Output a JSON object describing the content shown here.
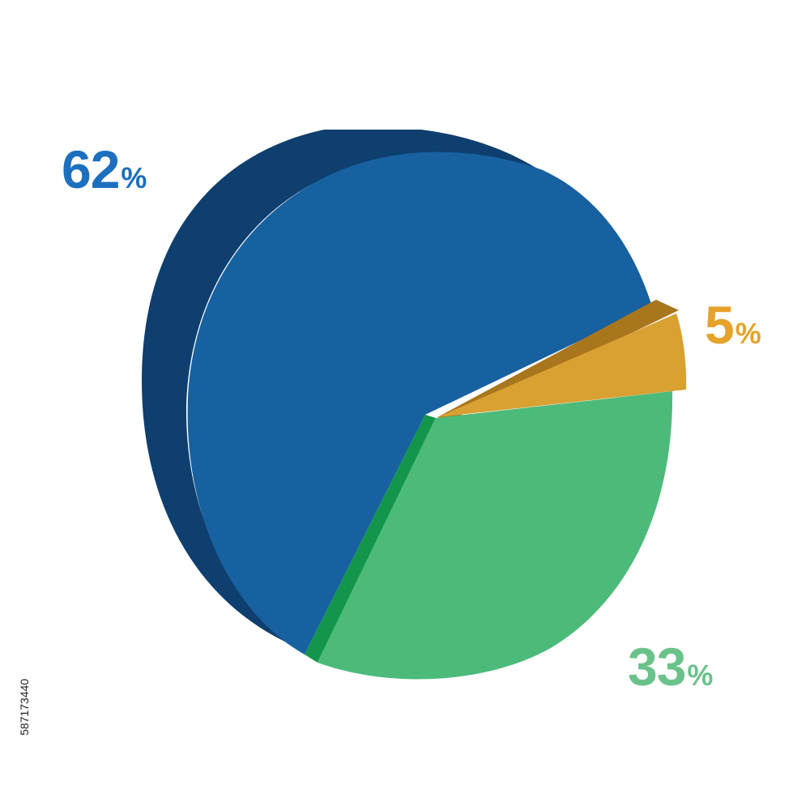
{
  "chart_data": {
    "type": "pie",
    "title": "",
    "categories": [
      "",
      "",
      ""
    ],
    "values": [
      62,
      5,
      33
    ],
    "unit": "%",
    "colors": {
      "blue_face": "#1761a0",
      "blue_side": "#0e3f6e",
      "gold_face": "#d9a032",
      "gold_side": "#a8761c",
      "green_face": "#4cbb7a",
      "green_edge": "#13964c"
    },
    "labels": [
      {
        "number": "62",
        "unit": "%",
        "color": "#1c6fbf"
      },
      {
        "number": "5",
        "unit": "%",
        "color": "#e6a22a"
      },
      {
        "number": "33",
        "unit": "%",
        "color": "#6ac28a"
      }
    ],
    "style": "3d-tilted",
    "legend": "none"
  },
  "stock_id": "587173440"
}
